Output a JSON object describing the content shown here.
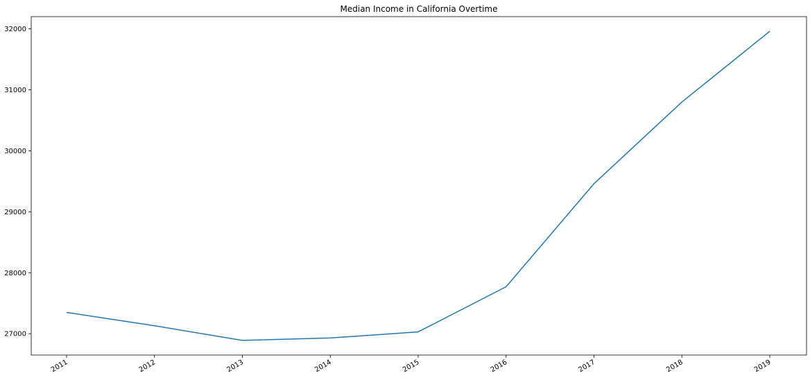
{
  "chart_data": {
    "type": "line",
    "title": "Median Income in California Overtime",
    "xlabel": "",
    "ylabel": "",
    "x": [
      "2011",
      "2012",
      "2013",
      "2014",
      "2015",
      "2016",
      "2017",
      "2018",
      "2019"
    ],
    "series": [
      {
        "name": "",
        "values": [
          27350,
          27130,
          26890,
          26930,
          27030,
          27770,
          29460,
          30800,
          31960
        ],
        "color": "#1f77b4"
      }
    ],
    "yticks": [
      27000,
      28000,
      29000,
      30000,
      31000,
      32000
    ],
    "ylim": [
      26650,
      32200
    ],
    "grid": false,
    "legend": "none"
  }
}
